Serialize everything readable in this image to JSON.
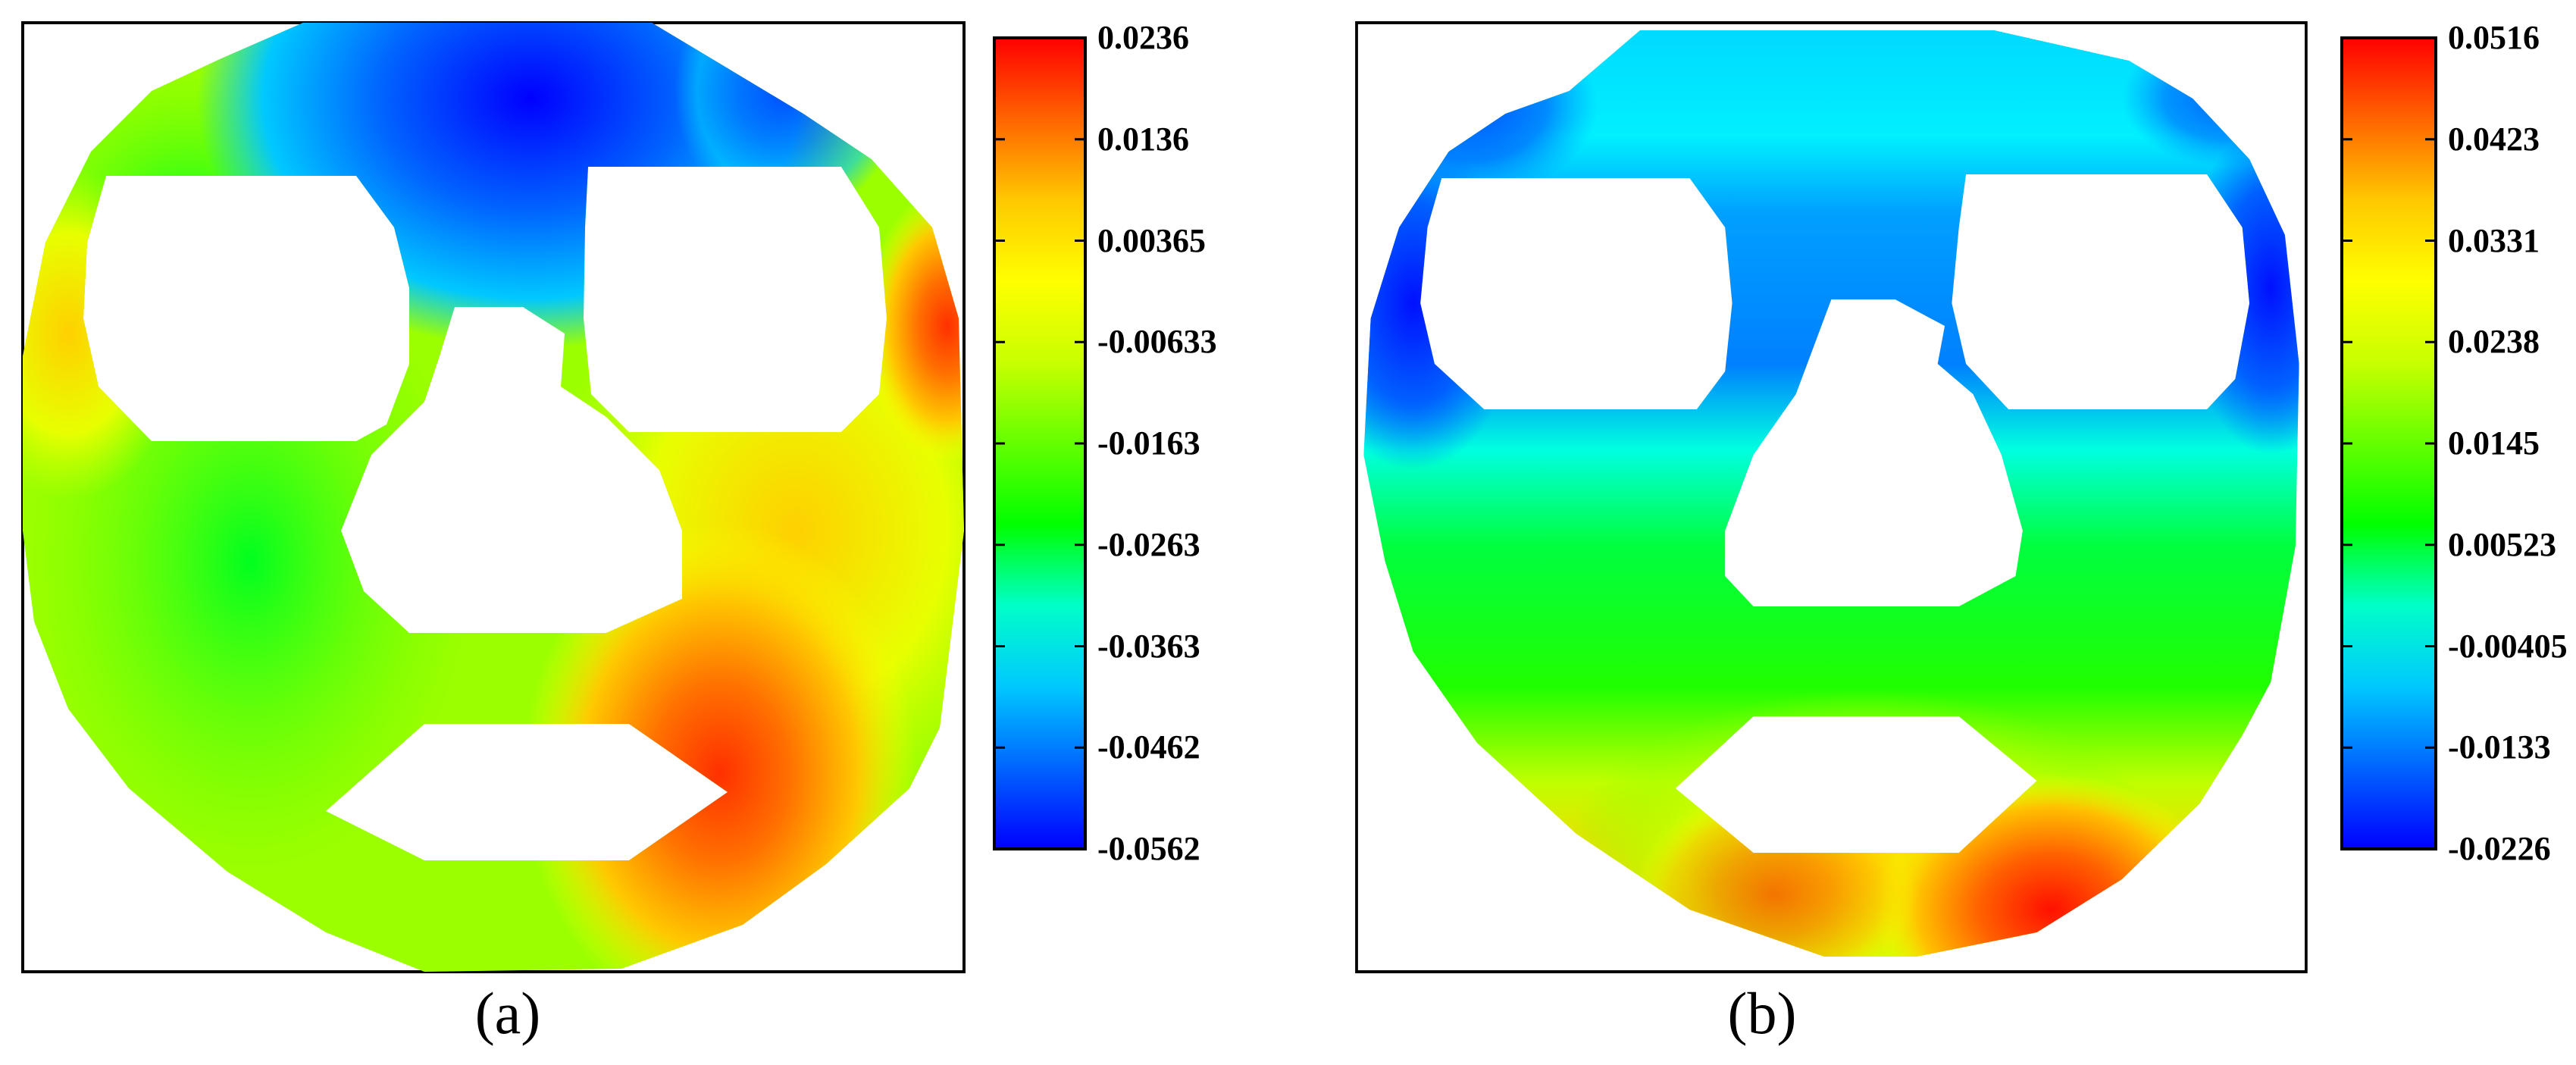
{
  "chart_data": [
    {
      "type": "contour",
      "panel_label": "(a)",
      "colorbar": {
        "max": 0.0236,
        "min": -0.0562,
        "tick_labels": [
          "0.0236",
          "0.0136",
          "0.00365",
          "-0.00633",
          "-0.0163",
          "-0.0263",
          "-0.0363",
          "-0.0462",
          "-0.0562"
        ]
      },
      "colormap": [
        "#0000ff",
        "#0064ff",
        "#00c8ff",
        "#00ffc8",
        "#00ff00",
        "#64ff00",
        "#c8ff00",
        "#ffff00",
        "#ffc800",
        "#ff6400",
        "#ff0000"
      ]
    },
    {
      "type": "contour",
      "panel_label": "(b)",
      "colorbar": {
        "max": 0.0516,
        "min": -0.0226,
        "tick_labels": [
          "0.0516",
          "0.0423",
          "0.0331",
          "0.0238",
          "0.0145",
          "0.00523",
          "-0.00405",
          "-0.0133",
          "-0.0226"
        ]
      },
      "colormap": [
        "#0000ff",
        "#0064ff",
        "#00c8ff",
        "#00ffc8",
        "#00ff00",
        "#64ff00",
        "#c8ff00",
        "#ffff00",
        "#ffc800",
        "#ff6400",
        "#ff0000"
      ]
    }
  ]
}
